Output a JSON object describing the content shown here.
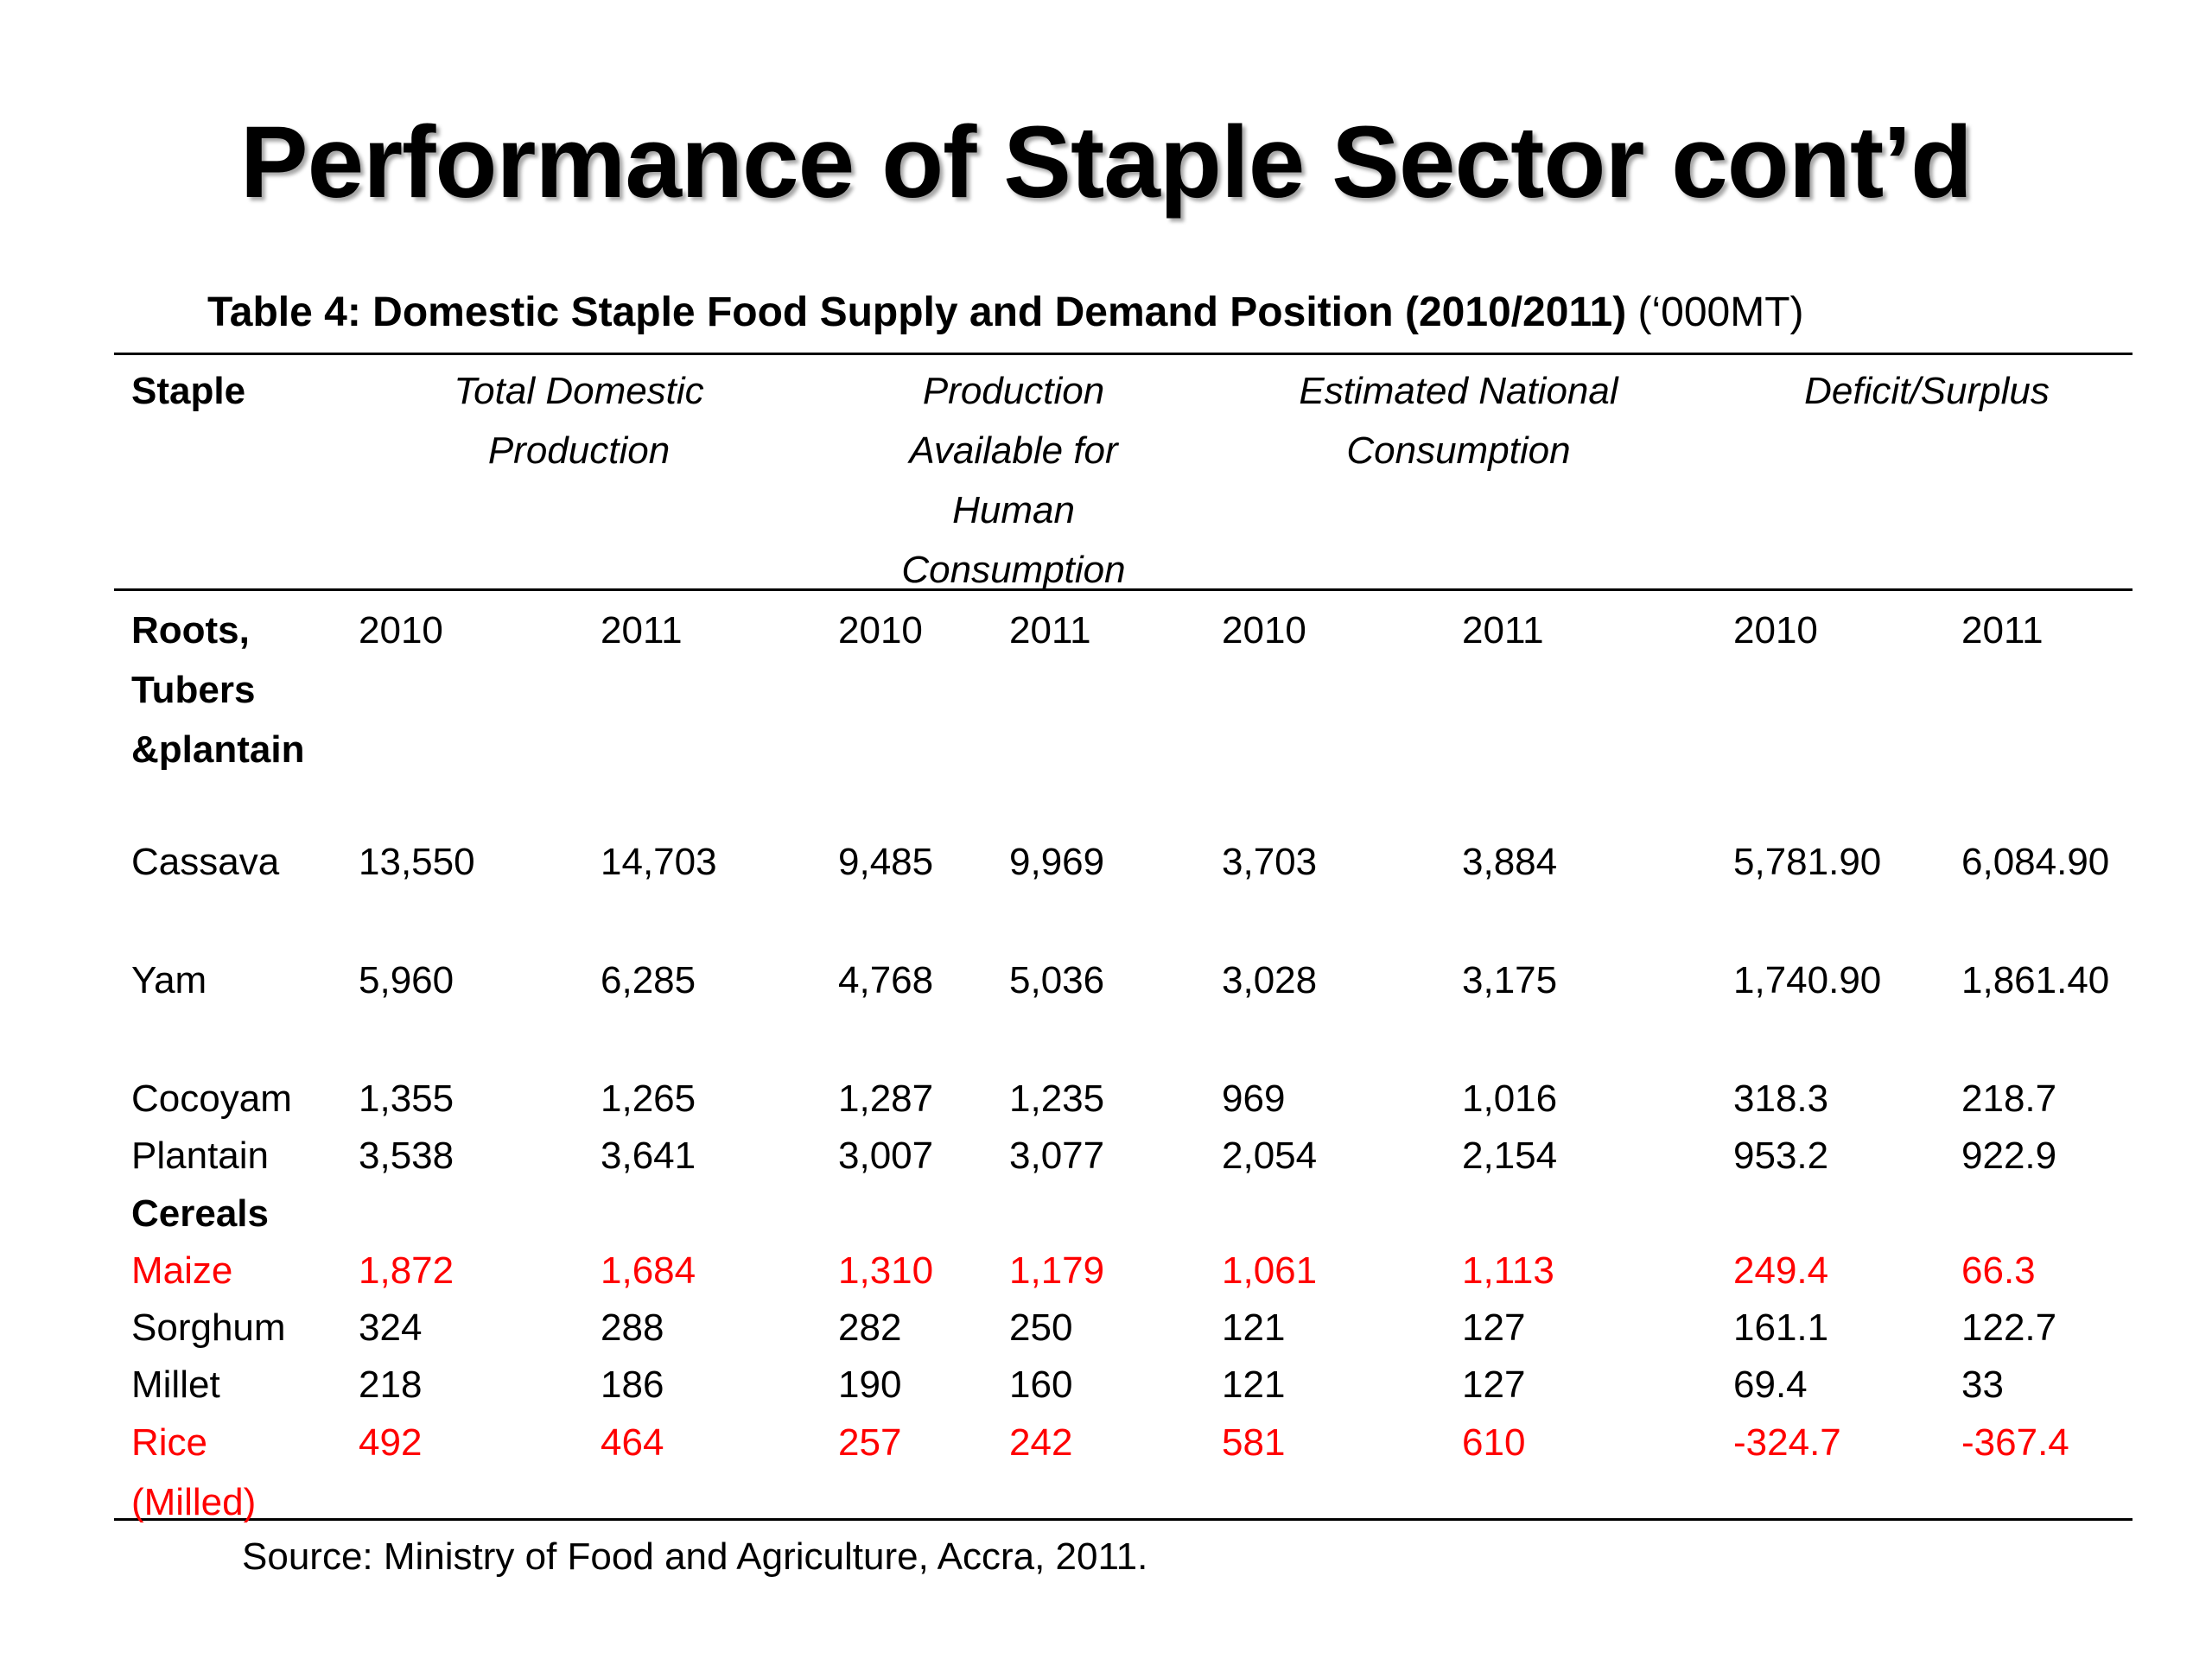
{
  "slide": {
    "title": "Performance of Staple Sector cont’d"
  },
  "caption": {
    "bold_text": "Table 4: Domestic Staple Food Supply and Demand Position (2010/2011)",
    "unit_text": " (‘000MT)"
  },
  "table": {
    "headers": {
      "staple": "Staple",
      "total_domestic_production": [
        "Total Domestic",
        "Production"
      ],
      "production_available": [
        "Production",
        "Available for",
        "Human",
        "Consumption"
      ],
      "estimated_consumption": [
        "Estimated National",
        "Consumption"
      ],
      "deficit_surplus": [
        "Deficit/Surplus"
      ]
    },
    "year_row": {
      "group_label": [
        "Roots,",
        "Tubers",
        "&plantain"
      ],
      "years": [
        "2010",
        "2011",
        "2010",
        "2011",
        "2010",
        "2011",
        "2010",
        "2011"
      ]
    },
    "rows": [
      {
        "name": [
          "Cassava"
        ],
        "values": [
          "13,550",
          "14,703",
          "9,485",
          "9,969",
          "3,703",
          "3,884",
          "5,781.90",
          "6,084.90"
        ],
        "highlight": false
      },
      {
        "name": [
          "Yam"
        ],
        "values": [
          "5,960",
          "6,285",
          "4,768",
          "5,036",
          "3,028",
          "3,175",
          "1,740.90",
          "1,861.40"
        ],
        "highlight": false
      },
      {
        "name": [
          "Cocoyam"
        ],
        "values": [
          "1,355",
          "1,265",
          "1,287",
          "1,235",
          "969",
          "1,016",
          "318.3",
          "218.7"
        ],
        "highlight": false
      },
      {
        "name": [
          "Plantain"
        ],
        "values": [
          "3,538",
          "3,641",
          "3,007",
          "3,077",
          "2,054",
          "2,154",
          "953.2",
          "922.9"
        ],
        "highlight": false
      },
      {
        "name": [
          "Cereals"
        ],
        "values": [],
        "highlight": false,
        "group": true
      },
      {
        "name": [
          "Maize"
        ],
        "values": [
          "1,872",
          "1,684",
          "1,310",
          "1,179",
          "1,061",
          "1,113",
          "249.4",
          "66.3"
        ],
        "highlight": true
      },
      {
        "name": [
          "Sorghum"
        ],
        "values": [
          "324",
          "288",
          "282",
          "250",
          "121",
          "127",
          "161.1",
          "122.7"
        ],
        "highlight": false
      },
      {
        "name": [
          "Millet"
        ],
        "values": [
          "218",
          "186",
          "190",
          "160",
          "121",
          "127",
          "69.4",
          "33"
        ],
        "highlight": false
      },
      {
        "name": [
          "Rice",
          "(Milled)"
        ],
        "values": [
          "492",
          "464",
          "257",
          "242",
          "581",
          "610",
          "-324.7",
          "-367.4"
        ],
        "highlight": true
      }
    ]
  },
  "source": "Source: Ministry of Food and Agriculture, Accra, 2011.",
  "colors": {
    "highlight": "#ff0000",
    "text": "#000000",
    "background": "#ffffff"
  }
}
